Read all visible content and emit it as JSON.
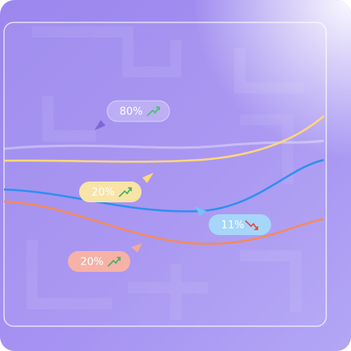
{
  "badges": [
    {
      "label": "80%"
    },
    {
      "label": "20%"
    },
    {
      "label": "11%"
    },
    {
      "label": "20%"
    }
  ]
}
